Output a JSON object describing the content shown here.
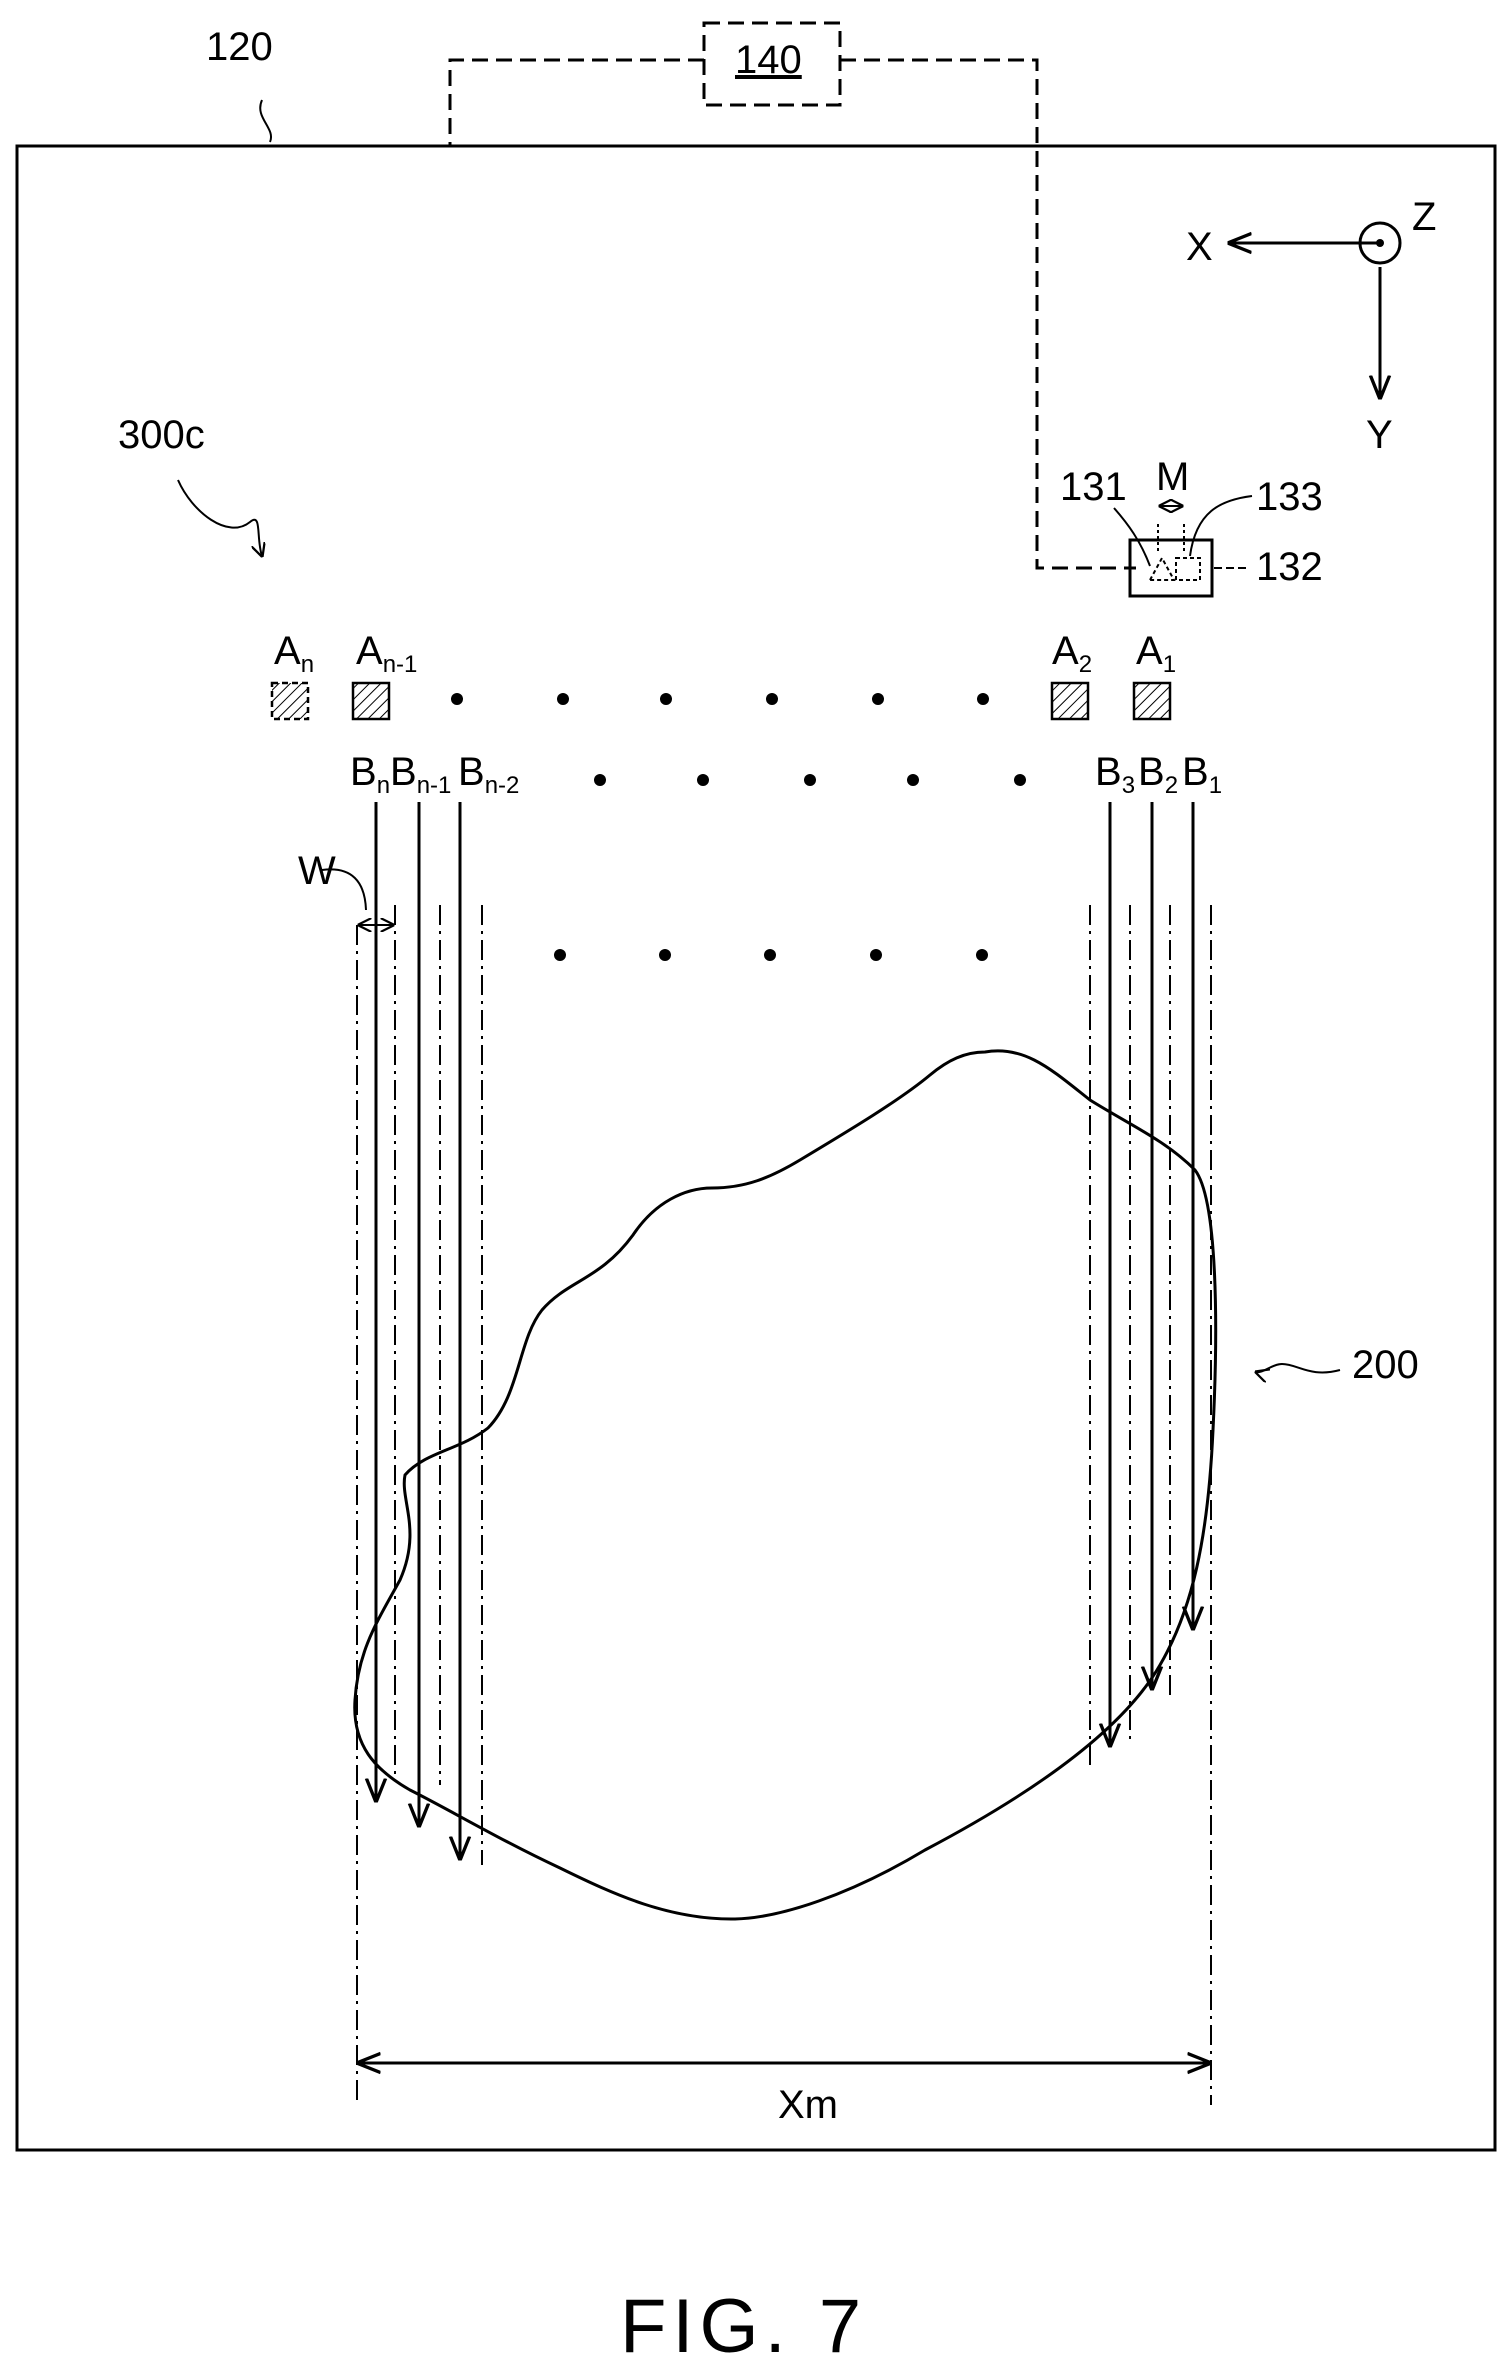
{
  "labels": {
    "frame_ref": "120",
    "controller_ref": "140",
    "system_ref": "300c",
    "sensor_ref_131": "131",
    "sensor_ref_133": "133",
    "sensor_ref_132": "132",
    "spacing_m": "M",
    "object_ref": "200",
    "width_w": "W",
    "extent_xm": "Xm",
    "figure_caption": "FIG. 7"
  },
  "axes": {
    "x": "X",
    "y": "Y",
    "z": "Z"
  },
  "emitters": [
    {
      "main": "A",
      "sub": "n"
    },
    {
      "main": "A",
      "sub": "n-1"
    },
    {
      "main": "A",
      "sub": "2"
    },
    {
      "main": "A",
      "sub": "1"
    }
  ],
  "beams": [
    {
      "main": "B",
      "sub": "n"
    },
    {
      "main": "B",
      "sub": "n-1"
    },
    {
      "main": "B",
      "sub": "n-2"
    },
    {
      "main": "B",
      "sub": "3"
    },
    {
      "main": "B",
      "sub": "2"
    },
    {
      "main": "B",
      "sub": "1"
    }
  ]
}
